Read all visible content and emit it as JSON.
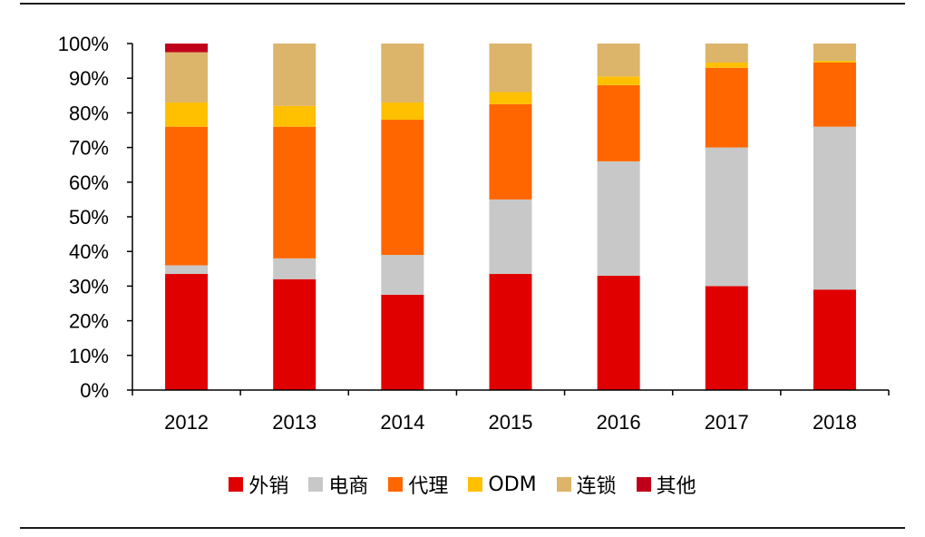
{
  "chart_data": {
    "type": "bar",
    "stacked": true,
    "categories": [
      "2012",
      "2013",
      "2014",
      "2015",
      "2016",
      "2017",
      "2018"
    ],
    "y_ticks": [
      "0%",
      "10%",
      "20%",
      "30%",
      "40%",
      "50%",
      "60%",
      "70%",
      "80%",
      "90%",
      "100%"
    ],
    "ylim": [
      0,
      100
    ],
    "grid": false,
    "legend_position": "bottom",
    "series": [
      {
        "name": "外销",
        "color": "#e00000",
        "values": [
          33.5,
          32,
          27.5,
          33.5,
          33,
          30,
          29
        ]
      },
      {
        "name": "电商",
        "color": "#c8c8c8",
        "values": [
          2.5,
          6,
          11.5,
          21.5,
          33,
          40,
          47
        ]
      },
      {
        "name": "代理",
        "color": "#ff6600",
        "values": [
          40,
          38,
          39,
          27.5,
          22,
          23,
          18.5
        ]
      },
      {
        "name": "ODM",
        "color": "#ffc000",
        "values": [
          7,
          6,
          5,
          3.5,
          2.5,
          1.5,
          0.5
        ]
      },
      {
        "name": "连锁",
        "color": "#dcb46a",
        "values": [
          14.5,
          18,
          17,
          14,
          9.5,
          5.5,
          5
        ]
      },
      {
        "name": "其他",
        "color": "#c0001a",
        "values": [
          2.5,
          0,
          0,
          0,
          0,
          0,
          0
        ]
      }
    ]
  }
}
